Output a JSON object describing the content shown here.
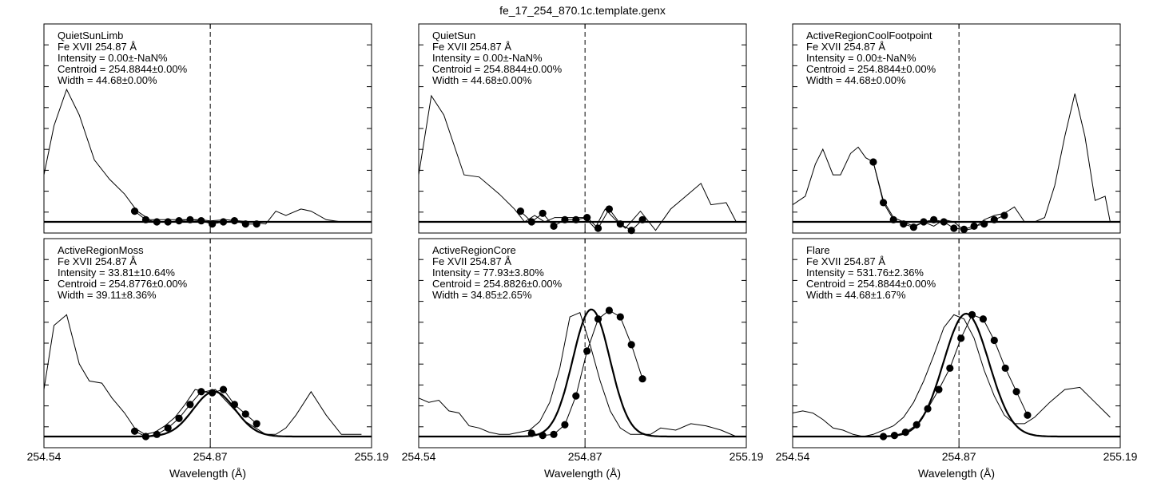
{
  "figure": {
    "title": "fe_17_254_870.1c.template.genx",
    "xlabel": "Wavelength (Å)",
    "xticks": [
      "254.54",
      "254.87",
      "255.19"
    ],
    "line_center": 254.87
  },
  "chart_data": [
    {
      "type": "line",
      "name": "QuietSunLimb",
      "panel_label": "QuietSunLimb",
      "ion_label": "Fe XVII 254.87 Å",
      "intensity_label": "Intensity = 0.00±-NaN%",
      "centroid_label": "Centroid = 254.8844±0.00%",
      "width_label": "Width = 44.68±0.00%",
      "xlim": [
        254.54,
        255.19
      ],
      "ylim": [
        0,
        10
      ],
      "xlabel": "Wavelength (Å)",
      "spectrum": {
        "x": [
          254.54,
          254.56,
          254.585,
          254.61,
          254.64,
          254.67,
          254.7,
          254.725,
          254.75,
          254.8,
          254.85,
          254.87,
          254.9,
          254.95,
          254.98,
          255.0,
          255.02,
          255.05,
          255.07,
          255.1,
          255.13
        ],
        "y": [
          2.2,
          4.5,
          6.2,
          5.0,
          2.9,
          2.0,
          1.3,
          0.5,
          0.1,
          0.1,
          0.1,
          0.05,
          0.1,
          0.0,
          -0.1,
          0.5,
          0.3,
          0.6,
          0.5,
          0.1,
          0.0
        ]
      },
      "fit_points": {
        "x": [
          254.72,
          254.742,
          254.764,
          254.786,
          254.808,
          254.83,
          254.852,
          254.874,
          254.896,
          254.918,
          254.94,
          254.962
        ],
        "y": [
          0.5,
          0.1,
          0.0,
          0.0,
          0.05,
          0.1,
          0.05,
          -0.1,
          0.0,
          0.05,
          -0.1,
          -0.1
        ]
      },
      "fit_curve": {
        "x": [
          254.54,
          255.19
        ],
        "y": [
          0.0,
          0.0
        ]
      }
    },
    {
      "type": "line",
      "name": "QuietSun",
      "panel_label": "QuietSun",
      "ion_label": "Fe XVII 254.87 Å",
      "intensity_label": "Intensity = 0.00±-NaN%",
      "centroid_label": "Centroid = 254.8844±0.00%",
      "width_label": "Width = 44.68±0.00%",
      "xlim": [
        254.54,
        255.19
      ],
      "ylim": [
        0,
        10
      ],
      "xlabel": "Wavelength (Å)",
      "spectrum": {
        "x": [
          254.54,
          254.565,
          254.59,
          254.63,
          254.66,
          254.7,
          254.73,
          254.75,
          254.77,
          254.79,
          254.81,
          254.83,
          254.85,
          254.87,
          254.89,
          254.91,
          254.93,
          254.95,
          254.98,
          255.01,
          255.04,
          255.07,
          255.1,
          255.12,
          255.15,
          255.17
        ],
        "y": [
          2.2,
          5.9,
          5.0,
          2.2,
          2.1,
          1.3,
          0.6,
          0.0,
          0.3,
          0.0,
          0.2,
          0.2,
          0.2,
          0.2,
          -0.3,
          0.6,
          0.1,
          -0.3,
          0.5,
          -0.4,
          0.6,
          1.2,
          1.8,
          0.8,
          0.9,
          0.0
        ]
      },
      "fit_points": {
        "x": [
          254.742,
          254.764,
          254.786,
          254.808,
          254.83,
          254.852,
          254.874,
          254.896,
          254.918,
          254.94,
          254.962,
          254.984
        ],
        "y": [
          0.5,
          0.0,
          0.4,
          -0.2,
          0.1,
          0.1,
          0.2,
          -0.3,
          0.6,
          -0.1,
          -0.4,
          0.1
        ]
      },
      "fit_curve": {
        "x": [
          254.54,
          255.19
        ],
        "y": [
          0.0,
          0.0
        ]
      }
    },
    {
      "type": "line",
      "name": "ActiveRegionCoolFootpoint",
      "panel_label": "ActiveRegionCoolFootpoint",
      "ion_label": "Fe XVII 254.87 Å",
      "intensity_label": "Intensity = 0.00±-NaN%",
      "centroid_label": "Centroid = 254.8844±0.00%",
      "width_label": "Width = 44.68±0.00%",
      "xlim": [
        254.54,
        255.19
      ],
      "ylim": [
        0,
        10
      ],
      "xlabel": "Wavelength (Å)",
      "spectrum": {
        "x": [
          254.54,
          254.565,
          254.585,
          254.6,
          254.62,
          254.635,
          254.655,
          254.67,
          254.685,
          254.7,
          254.72,
          254.74,
          254.76,
          254.78,
          254.8,
          254.82,
          254.84,
          254.86,
          254.88,
          254.9,
          254.92,
          254.94,
          254.96,
          254.98,
          255.0,
          255.02,
          255.04,
          255.06,
          255.08,
          255.1,
          255.12,
          255.14,
          255.16,
          255.17
        ],
        "y": [
          0.8,
          1.2,
          2.7,
          3.4,
          2.2,
          2.2,
          3.2,
          3.5,
          3.0,
          2.8,
          1.0,
          0.2,
          0.0,
          -0.2,
          0.0,
          -0.2,
          0.1,
          0.0,
          -0.4,
          -0.3,
          0.1,
          0.3,
          0.4,
          0.7,
          0.0,
          0.0,
          0.2,
          1.7,
          4.0,
          6.0,
          4.0,
          1.0,
          1.2,
          0.0
        ]
      },
      "fit_points": {
        "x": [
          254.7,
          254.72,
          254.74,
          254.76,
          254.78,
          254.8,
          254.82,
          254.84,
          254.86,
          254.88,
          254.9,
          254.92,
          254.94,
          254.96
        ],
        "y": [
          2.8,
          0.9,
          0.1,
          -0.1,
          -0.25,
          0.0,
          0.1,
          0.0,
          -0.3,
          -0.35,
          -0.2,
          -0.1,
          0.1,
          0.3
        ]
      },
      "fit_curve": {
        "x": [
          254.54,
          255.19
        ],
        "y": [
          0.0,
          0.0
        ]
      }
    },
    {
      "type": "line",
      "name": "ActiveRegionMoss",
      "panel_label": "ActiveRegionMoss",
      "ion_label": "Fe XVII 254.87 Å",
      "intensity_label": "Intensity = 33.81±10.64%",
      "centroid_label": "Centroid = 254.8776±0.00%",
      "width_label": "Width = 39.11±8.36%",
      "xlim": [
        254.54,
        255.19
      ],
      "ylim": [
        0,
        10
      ],
      "xlabel": "Wavelength (Å)",
      "spectrum": {
        "x": [
          254.54,
          254.56,
          254.585,
          254.61,
          254.63,
          254.655,
          254.675,
          254.7,
          254.72,
          254.74,
          254.76,
          254.78,
          254.8,
          254.82,
          254.84,
          254.86,
          254.88,
          254.9,
          254.92,
          254.94,
          254.96,
          254.98,
          255.0,
          255.02,
          255.04,
          255.07,
          255.1,
          255.13,
          255.17
        ],
        "y": [
          2.2,
          5.2,
          5.7,
          3.4,
          2.6,
          2.5,
          1.8,
          1.1,
          0.4,
          0.1,
          0.2,
          0.5,
          0.9,
          1.5,
          2.2,
          2.1,
          2.2,
          1.7,
          1.2,
          0.7,
          0.4,
          0.1,
          0.1,
          0.4,
          1.0,
          2.1,
          1.0,
          0.1,
          0.1
        ]
      },
      "fit_points": {
        "x": [
          254.72,
          254.742,
          254.764,
          254.786,
          254.808,
          254.83,
          254.852,
          254.874,
          254.896,
          254.918,
          254.94,
          254.962
        ],
        "y": [
          0.25,
          0.0,
          0.1,
          0.4,
          0.85,
          1.5,
          2.1,
          2.05,
          2.2,
          1.5,
          1.05,
          0.6
        ]
      },
      "fit_curve": {
        "amplitude": 2.1,
        "center": 254.8776,
        "sigma": 0.0415,
        "baseline": 0.0
      }
    },
    {
      "type": "line",
      "name": "ActiveRegionCore",
      "panel_label": "ActiveRegionCore",
      "ion_label": "Fe XVII 254.87 Å",
      "intensity_label": "Intensity = 77.93±3.80%",
      "centroid_label": "Centroid = 254.8826±0.00%",
      "width_label": "Width = 34.85±2.65%",
      "xlim": [
        254.54,
        255.19
      ],
      "ylim": [
        0,
        10
      ],
      "xlabel": "Wavelength (Å)",
      "spectrum": {
        "x": [
          254.54,
          254.56,
          254.58,
          254.6,
          254.62,
          254.64,
          254.66,
          254.68,
          254.7,
          254.72,
          254.74,
          254.76,
          254.78,
          254.8,
          254.82,
          254.84,
          254.86,
          254.88,
          254.9,
          254.92,
          254.94,
          254.96,
          254.98,
          255.0,
          255.02,
          255.05,
          255.08,
          255.11,
          255.14,
          255.17
        ],
        "y": [
          1.8,
          1.6,
          1.7,
          1.2,
          1.1,
          0.5,
          0.4,
          0.2,
          0.1,
          0.1,
          0.2,
          0.3,
          0.7,
          1.6,
          3.2,
          5.6,
          5.8,
          4.3,
          2.6,
          1.2,
          0.4,
          0.1,
          0.1,
          0.1,
          0.4,
          0.3,
          0.6,
          0.5,
          0.3,
          0.0
        ]
      },
      "fit_points": {
        "x": [
          254.764,
          254.786,
          254.808,
          254.83,
          254.852,
          254.874,
          254.896,
          254.918,
          254.94,
          254.962,
          254.984
        ],
        "y": [
          0.15,
          0.05,
          0.1,
          0.55,
          1.9,
          4.0,
          5.5,
          5.9,
          5.6,
          4.3,
          2.7
        ]
      },
      "fit_curve": {
        "amplitude": 5.95,
        "center": 254.8826,
        "sigma": 0.037,
        "baseline": 0.0
      }
    },
    {
      "type": "line",
      "name": "Flare",
      "panel_label": "Flare",
      "ion_label": "Fe XVII 254.87 Å",
      "intensity_label": "Intensity = 531.76±2.36%",
      "centroid_label": "Centroid = 254.8844±0.00%",
      "width_label": "Width = 44.68±1.67%",
      "xlim": [
        254.54,
        255.19
      ],
      "ylim": [
        0,
        10
      ],
      "xlabel": "Wavelength (Å)",
      "spectrum": {
        "x": [
          254.54,
          254.56,
          254.58,
          254.6,
          254.62,
          254.64,
          254.66,
          254.68,
          254.7,
          254.72,
          254.74,
          254.76,
          254.78,
          254.8,
          254.82,
          254.84,
          254.86,
          254.88,
          254.9,
          254.92,
          254.94,
          254.96,
          254.98,
          255.0,
          255.02,
          255.05,
          255.08,
          255.11,
          255.14,
          255.17
        ],
        "y": [
          1.1,
          1.2,
          1.1,
          0.8,
          0.4,
          0.3,
          0.1,
          0.0,
          0.1,
          0.3,
          0.5,
          0.9,
          1.6,
          2.6,
          3.8,
          5.1,
          5.7,
          5.5,
          4.6,
          3.1,
          1.9,
          1.0,
          0.6,
          0.6,
          0.9,
          1.6,
          2.2,
          2.3,
          1.6,
          0.9
        ]
      },
      "fit_points": {
        "x": [
          254.72,
          254.742,
          254.764,
          254.786,
          254.808,
          254.83,
          254.852,
          254.874,
          254.896,
          254.918,
          254.94,
          254.962,
          254.984,
          255.006
        ],
        "y": [
          0.0,
          0.05,
          0.2,
          0.55,
          1.3,
          2.2,
          3.2,
          4.6,
          5.7,
          5.5,
          4.5,
          3.2,
          2.1,
          1.0
        ]
      },
      "fit_curve": {
        "amplitude": 5.75,
        "center": 254.8844,
        "sigma": 0.045,
        "baseline": 0.0
      }
    }
  ]
}
